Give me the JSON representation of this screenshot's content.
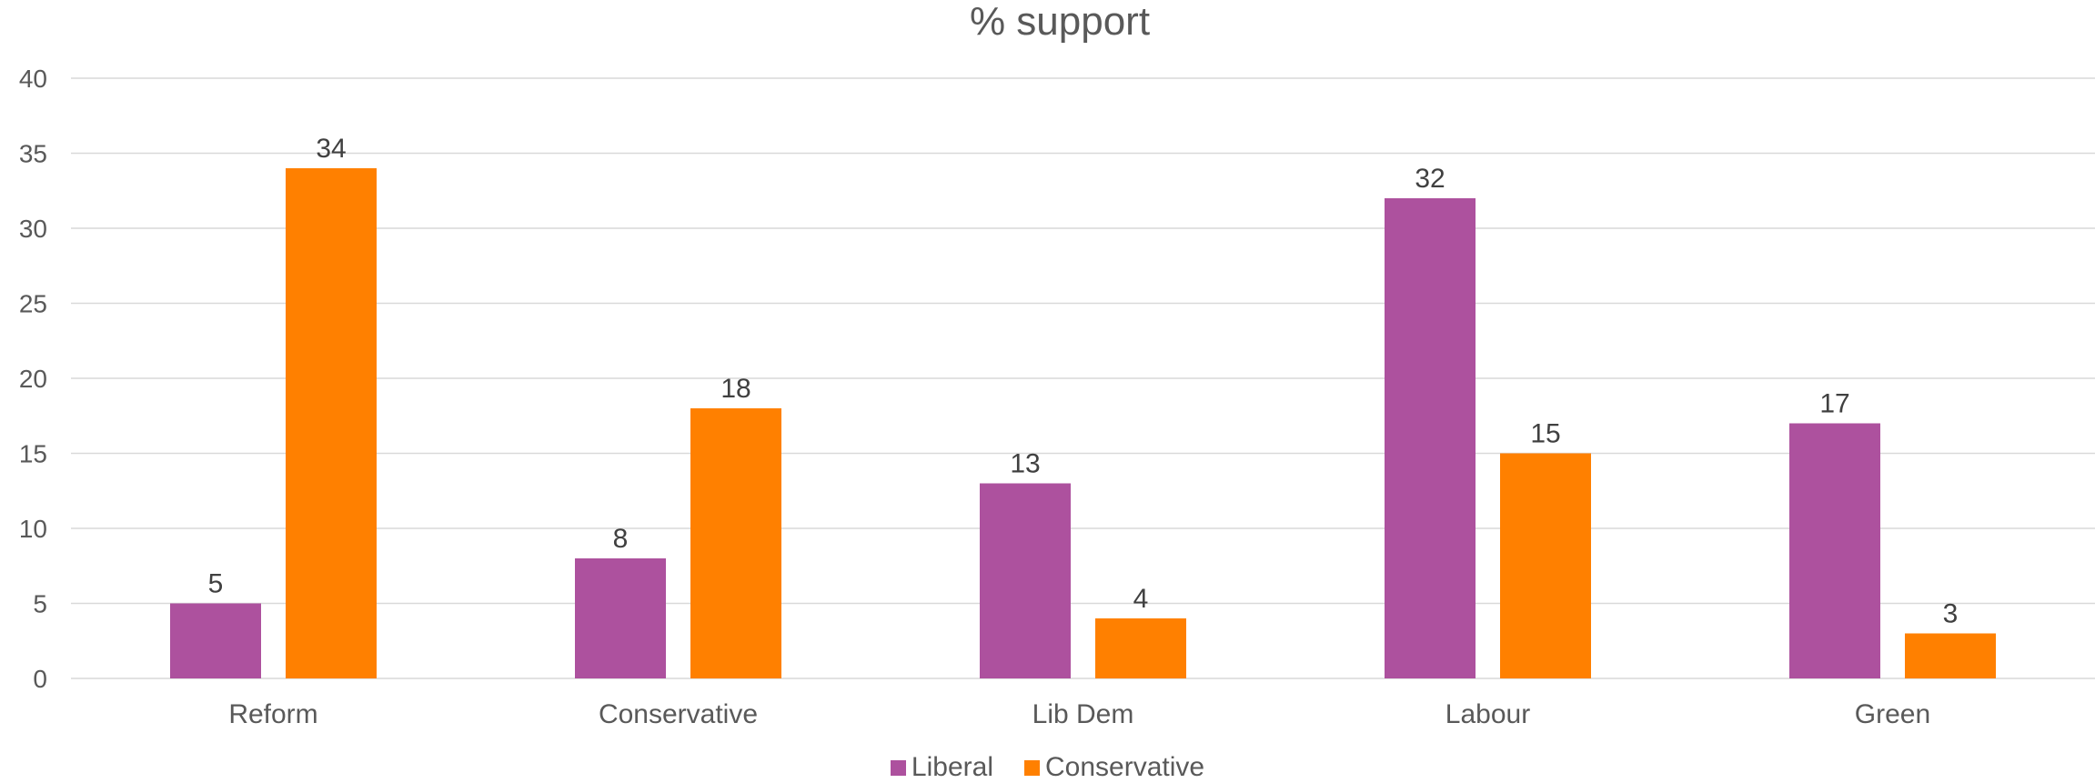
{
  "chart_data": {
    "type": "bar",
    "title": "% support",
    "xlabel": "",
    "ylabel": "",
    "categories": [
      "Reform",
      "Conservative",
      "Lib Dem",
      "Labour",
      "Green"
    ],
    "series": [
      {
        "name": "Liberal",
        "values": [
          5,
          8,
          13,
          32,
          17
        ],
        "color": "#AD519E"
      },
      {
        "name": "Conservative",
        "values": [
          34,
          18,
          4,
          15,
          3
        ],
        "color": "#FF8000"
      }
    ],
    "ylim": [
      0,
      40
    ],
    "yticks": [
      0,
      5,
      10,
      15,
      20,
      25,
      30,
      35,
      40
    ],
    "grid": true,
    "legend_position": "bottom",
    "data_labels": true,
    "colors": {
      "text": "#595959",
      "label": "#404040",
      "grid": "#D9D9D9"
    }
  }
}
